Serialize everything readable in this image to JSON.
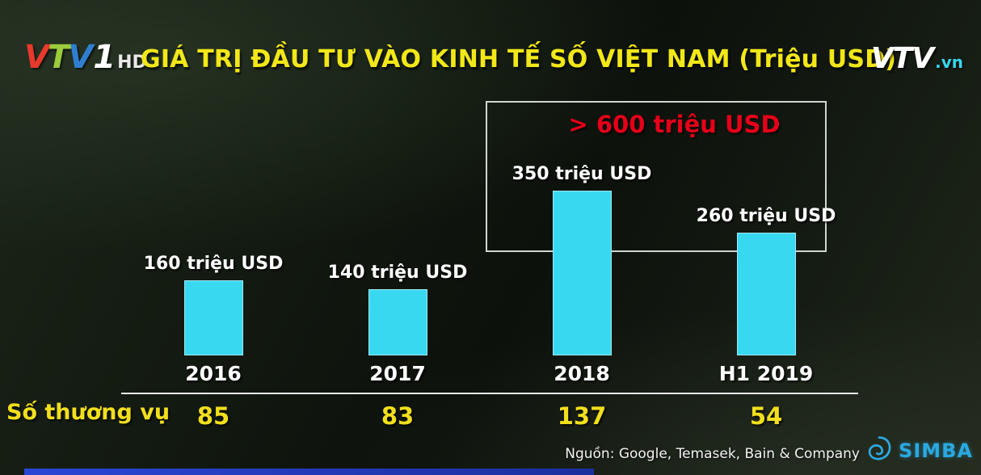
{
  "header": {
    "channel_logo": {
      "v1": "V",
      "t": "T",
      "v2": "V",
      "one": "1",
      "hd": "HD"
    },
    "title": "GIÁ TRỊ ĐẦU TƯ VÀO KINH TẾ SỐ VIỆT NAM (Triệu USD)",
    "network_logo": {
      "text": "VTV",
      "suffix": ".vn"
    }
  },
  "chart_data": {
    "type": "bar",
    "title": "GIÁ TRỊ ĐẦU TƯ VÀO KINH TẾ SỐ VIỆT NAM (Triệu USD)",
    "unit": "Triệu USD",
    "categories": [
      "2016",
      "2017",
      "2018",
      "H1 2019"
    ],
    "values": [
      160,
      140,
      350,
      260
    ],
    "value_labels": [
      "160 triệu USD",
      "140 triệu USD",
      "350 triệu USD",
      "260 triệu USD"
    ],
    "bar_color": "#38d9f0",
    "ylim": [
      0,
      350
    ],
    "grid": false,
    "annotation": {
      "text": "> 600 triệu USD",
      "color": "#e50019",
      "applies_to": [
        "2018",
        "H1 2019"
      ]
    },
    "deals_row": {
      "label": "Số thương vụ",
      "values": [
        "85",
        "83",
        "137",
        "54"
      ]
    }
  },
  "footer": {
    "source": "Nguồn: Google, Temasek, Bain & Company",
    "watermark": "SIMBA"
  }
}
